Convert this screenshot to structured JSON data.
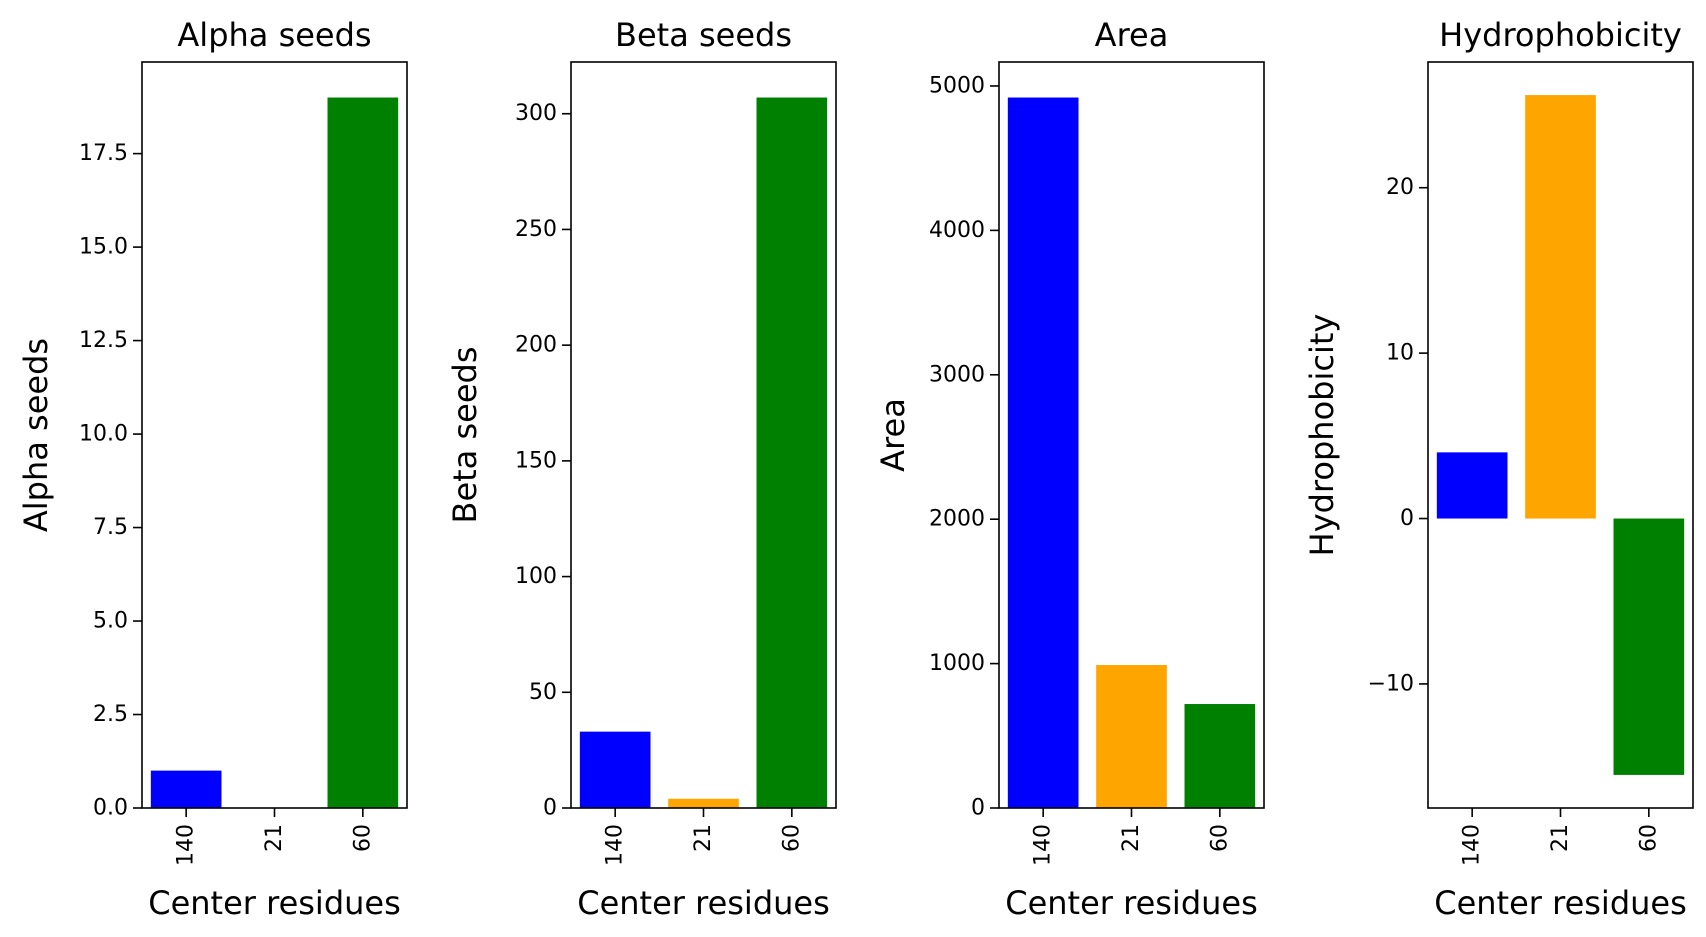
{
  "chart_data": [
    {
      "type": "bar",
      "title": "Alpha seeds",
      "xlabel": "Center residues",
      "ylabel": "Alpha seeds",
      "categories": [
        "140",
        "21",
        "60"
      ],
      "values": [
        1,
        0,
        19
      ],
      "colors": [
        "#0000ff",
        "#ffa500",
        "#008000"
      ],
      "ylim": [
        0,
        19.95
      ],
      "yticks": [
        0,
        2.5,
        5,
        7.5,
        10,
        12.5,
        15,
        17.5
      ],
      "ytick_labels": [
        "0.0",
        "2.5",
        "5.0",
        "7.5",
        "10.0",
        "12.5",
        "15.0",
        "17.5"
      ]
    },
    {
      "type": "bar",
      "title": "Beta seeds",
      "xlabel": "Center residues",
      "ylabel": "Beta seeds",
      "categories": [
        "140",
        "21",
        "60"
      ],
      "values": [
        33,
        4,
        307
      ],
      "colors": [
        "#0000ff",
        "#ffa500",
        "#008000"
      ],
      "ylim": [
        0,
        322.35
      ],
      "yticks": [
        0,
        50,
        100,
        150,
        200,
        250,
        300
      ],
      "ytick_labels": [
        "0",
        "50",
        "100",
        "150",
        "200",
        "250",
        "300"
      ]
    },
    {
      "type": "bar",
      "title": "Area",
      "xlabel": "Center residues",
      "ylabel": "Area",
      "categories": [
        "140",
        "21",
        "60"
      ],
      "values": [
        4920,
        990,
        720
      ],
      "colors": [
        "#0000ff",
        "#ffa500",
        "#008000"
      ],
      "ylim": [
        0,
        5166
      ],
      "yticks": [
        0,
        1000,
        2000,
        3000,
        4000,
        5000
      ],
      "ytick_labels": [
        "0",
        "1000",
        "2000",
        "3000",
        "4000",
        "5000"
      ]
    },
    {
      "type": "bar",
      "title": "Hydrophobicity",
      "xlabel": "Center residues",
      "ylabel": "Hydrophobicity",
      "categories": [
        "140",
        "21",
        "60"
      ],
      "values": [
        4,
        25.6,
        -15.5
      ],
      "colors": [
        "#0000ff",
        "#ffa500",
        "#008000"
      ],
      "ylim": [
        -17.5,
        27.6
      ],
      "yticks": [
        -10,
        0,
        10,
        20
      ],
      "ytick_labels": [
        "−10",
        "0",
        "10",
        "20"
      ]
    }
  ]
}
